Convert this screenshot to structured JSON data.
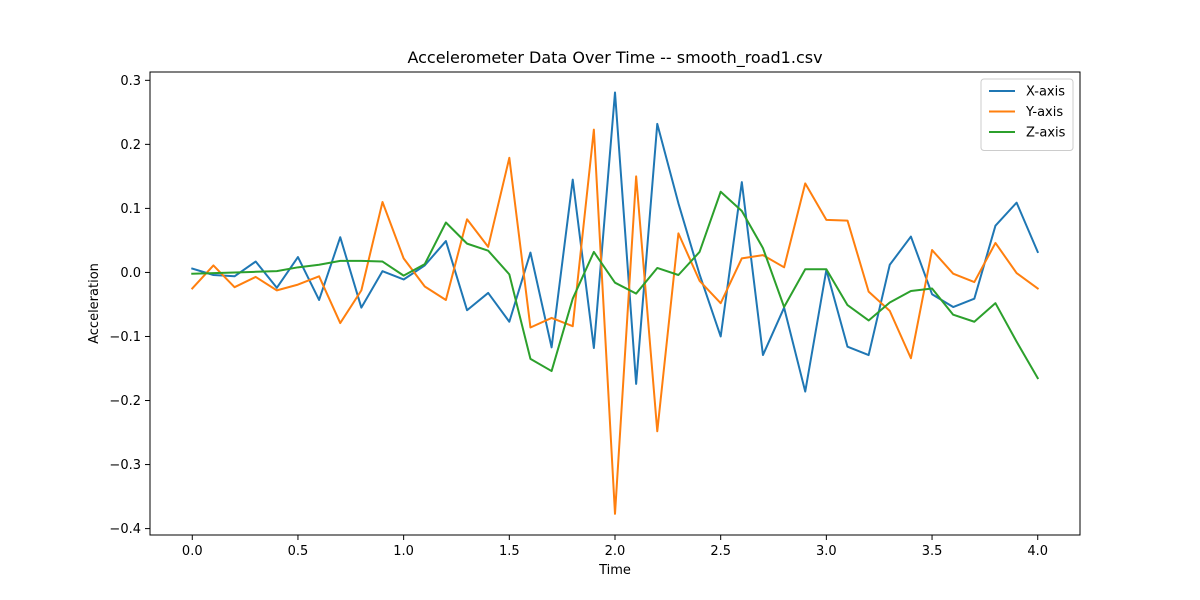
{
  "chart_data": {
    "type": "line",
    "title": "Accelerometer Data Over Time -- smooth_road1.csv",
    "xlabel": "Time",
    "ylabel": "Acceleration",
    "xlim": [
      -0.2,
      4.2
    ],
    "ylim": [
      -0.41,
      0.313
    ],
    "xticks": [
      0.0,
      0.5,
      1.0,
      1.5,
      2.0,
      2.5,
      3.0,
      3.5,
      4.0
    ],
    "xtick_labels": [
      "0.0",
      "0.5",
      "1.0",
      "1.5",
      "2.0",
      "2.5",
      "3.0",
      "3.5",
      "4.0"
    ],
    "yticks": [
      -0.4,
      -0.3,
      -0.2,
      -0.1,
      0.0,
      0.1,
      0.2,
      0.3
    ],
    "ytick_labels": [
      "−0.4",
      "−0.3",
      "−0.2",
      "−0.1",
      "0.0",
      "0.1",
      "0.2",
      "0.3"
    ],
    "grid": false,
    "legend_position": "top-right",
    "x": [
      0.0,
      0.1,
      0.2,
      0.3,
      0.4,
      0.5,
      0.6,
      0.7,
      0.8,
      0.9,
      1.0,
      1.1,
      1.2,
      1.3,
      1.4,
      1.5,
      1.6,
      1.7,
      1.8,
      1.9,
      2.0,
      2.1,
      2.2,
      2.3,
      2.4,
      2.5,
      2.6,
      2.7,
      2.8,
      2.9,
      3.0,
      3.1,
      3.2,
      3.3,
      3.4,
      3.5,
      3.6,
      3.7,
      3.8,
      3.9,
      4.0
    ],
    "series": [
      {
        "name": "X-axis",
        "color": "#1f77b4",
        "values": [
          0.006,
          -0.004,
          -0.006,
          0.017,
          -0.024,
          0.024,
          -0.043,
          0.055,
          -0.055,
          0.002,
          -0.011,
          0.011,
          0.049,
          -0.059,
          -0.032,
          -0.077,
          0.031,
          -0.117,
          0.145,
          -0.118,
          0.281,
          -0.174,
          0.232,
          0.108,
          -0.003,
          -0.1,
          0.141,
          -0.129,
          -0.055,
          -0.186,
          0.004,
          -0.116,
          -0.129,
          0.012,
          0.056,
          -0.034,
          -0.054,
          -0.041,
          0.073,
          0.109,
          0.032
        ]
      },
      {
        "name": "Y-axis",
        "color": "#ff7f0e",
        "values": [
          -0.025,
          0.011,
          -0.023,
          -0.007,
          -0.028,
          -0.019,
          -0.006,
          -0.079,
          -0.028,
          0.11,
          0.022,
          -0.022,
          -0.043,
          0.083,
          0.04,
          0.179,
          -0.086,
          -0.071,
          -0.084,
          0.223,
          -0.377,
          0.15,
          -0.248,
          0.061,
          -0.013,
          -0.048,
          0.022,
          0.027,
          0.008,
          0.139,
          0.082,
          0.081,
          -0.03,
          -0.06,
          -0.134,
          0.035,
          -0.002,
          -0.015,
          0.046,
          -0.001,
          -0.025
        ]
      },
      {
        "name": "Z-axis",
        "color": "#2ca02c",
        "values": [
          -0.002,
          -0.001,
          0.0,
          0.001,
          0.002,
          0.008,
          0.012,
          0.018,
          0.018,
          0.017,
          -0.005,
          0.013,
          0.078,
          0.045,
          0.034,
          -0.003,
          -0.135,
          -0.154,
          -0.041,
          0.032,
          -0.016,
          -0.033,
          0.007,
          -0.004,
          0.032,
          0.126,
          0.096,
          0.038,
          -0.054,
          0.005,
          0.005,
          -0.051,
          -0.075,
          -0.047,
          -0.029,
          -0.025,
          -0.066,
          -0.077,
          -0.048,
          -0.108,
          -0.165
        ]
      }
    ]
  }
}
